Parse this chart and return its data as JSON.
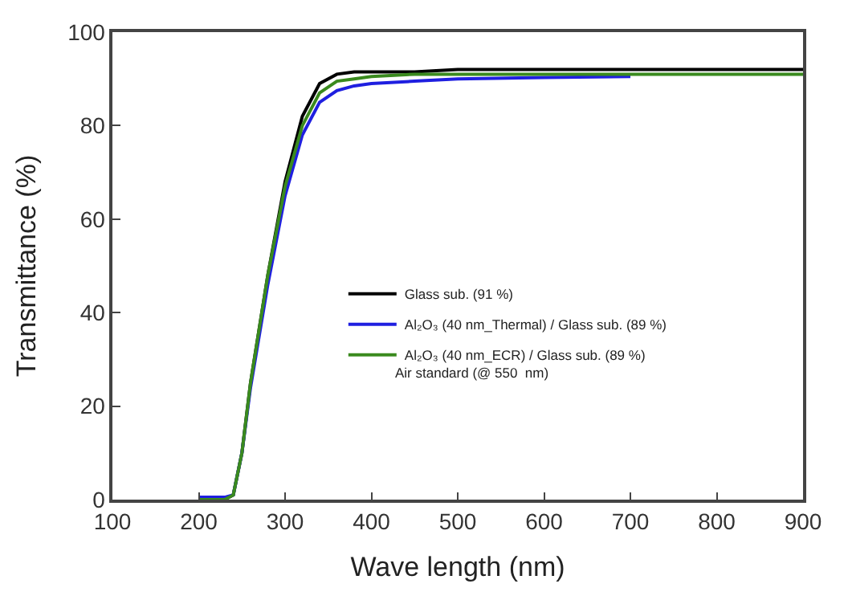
{
  "chart_data": {
    "type": "line",
    "xlabel": "Wave length (nm)",
    "ylabel": "Transmittance (%)",
    "x": [
      200,
      230,
      240,
      250,
      260,
      280,
      300,
      320,
      340,
      360,
      380,
      400,
      450,
      500,
      600,
      700,
      800,
      900
    ],
    "series": [
      {
        "name": "Glass sub. (91 %)",
        "color": "#000000",
        "values": [
          0,
          0,
          1,
          10,
          25,
          48,
          68,
          82,
          89,
          91,
          91.5,
          91.5,
          91.5,
          92,
          92,
          92,
          92,
          92
        ]
      },
      {
        "name": "Al₂O₃ (40 nm_Thermal) / Glass sub. (89 %)",
        "color": "#1f1fe0",
        "values": [
          0.5,
          0.5,
          1,
          10,
          24,
          46,
          65,
          78,
          85,
          87.5,
          88.5,
          89,
          89.5,
          90,
          90.3,
          90.5,
          null,
          null
        ]
      },
      {
        "name": "Al₂O₃ (40 nm_ECR) / Glass sub. (89 %)",
        "color": "#3a8a1e",
        "values": [
          0,
          0,
          1,
          10,
          25,
          48,
          67,
          80,
          87,
          89.5,
          90,
          90.5,
          91,
          91,
          91,
          91,
          91,
          91
        ]
      }
    ],
    "xlim": [
      100,
      900
    ],
    "xticks": [
      100,
      200,
      300,
      400,
      500,
      600,
      700,
      800,
      900
    ],
    "ylim": [
      0,
      100
    ],
    "yticks": [
      0,
      20,
      40,
      60,
      80,
      100
    ],
    "legend": "right",
    "marker": "none",
    "line_style": "solid",
    "annotations": [
      "Air standard (@ 550  nm)"
    ]
  }
}
